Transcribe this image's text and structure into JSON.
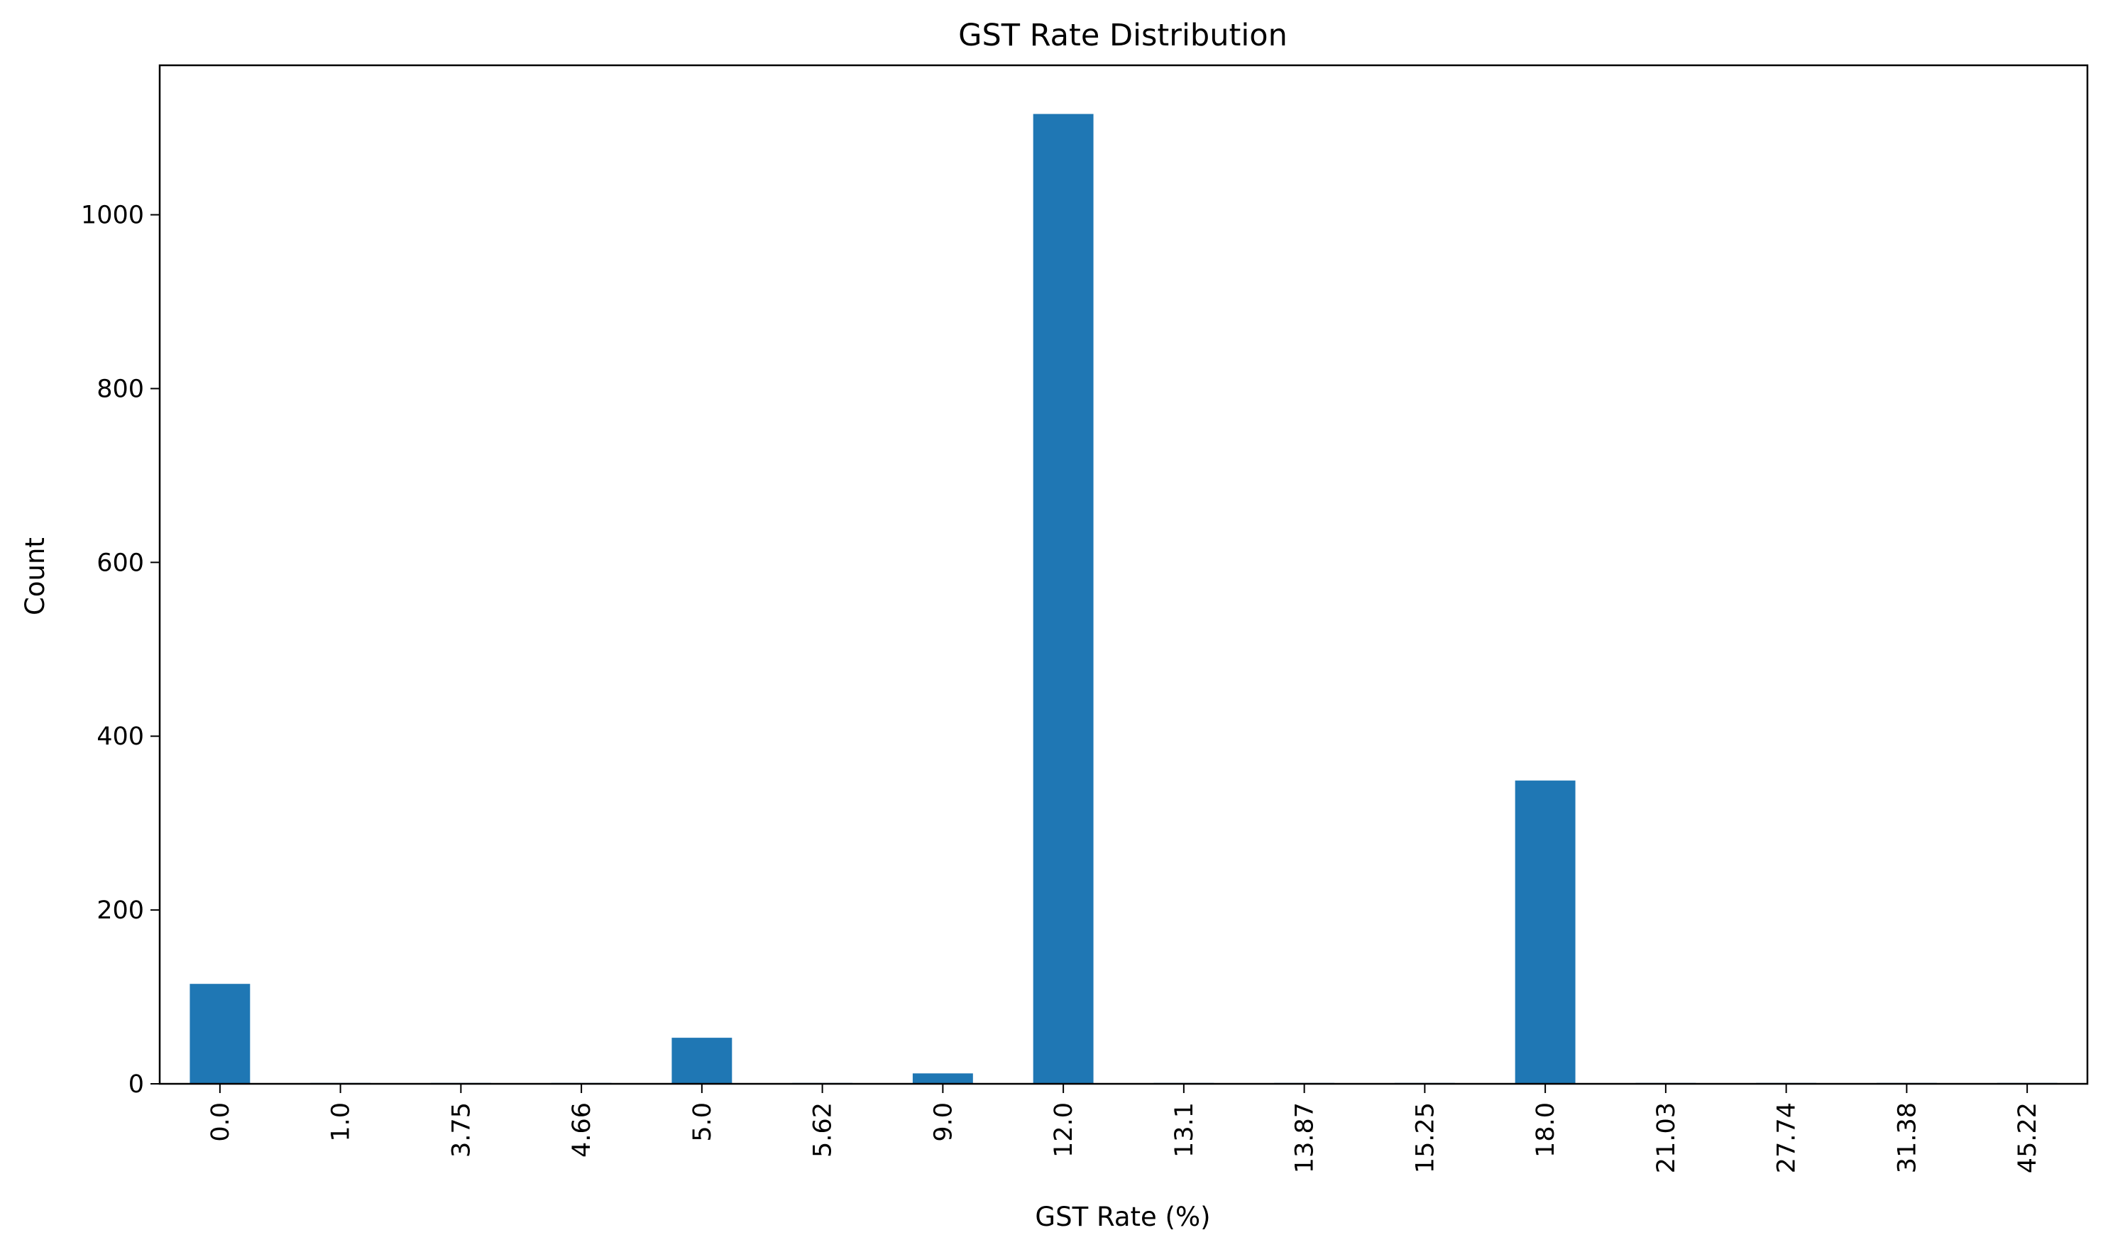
{
  "chart_data": {
    "type": "bar",
    "title": "GST Rate Distribution",
    "xlabel": "GST Rate (%)",
    "ylabel": "Count",
    "categories": [
      "0.0",
      "1.0",
      "3.75",
      "4.66",
      "5.0",
      "5.62",
      "9.0",
      "12.0",
      "13.1",
      "13.87",
      "15.25",
      "18.0",
      "21.03",
      "27.74",
      "31.38",
      "45.22"
    ],
    "values": [
      115,
      1,
      1,
      1,
      53,
      1,
      12,
      1116,
      1,
      1,
      1,
      349,
      1,
      1,
      1,
      1
    ],
    "ylim": [
      0,
      1172
    ],
    "yticks": [
      0,
      200,
      400,
      600,
      800,
      1000
    ],
    "grid": false,
    "legend": "none",
    "bar_color": "#1f77b4"
  }
}
